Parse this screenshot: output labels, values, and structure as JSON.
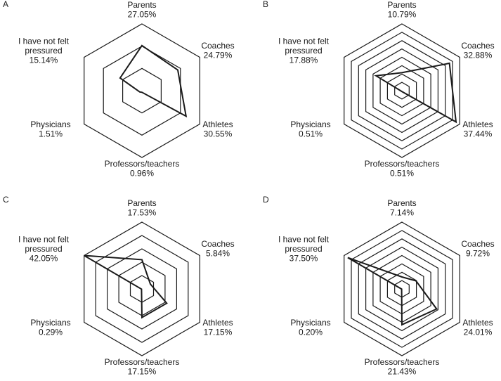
{
  "chart_data": [
    {
      "type": "radar",
      "panel": "A",
      "rings": 3,
      "axes": [
        "Parents",
        "Coaches",
        "Athletes",
        "Professors/teachers",
        "Physicians",
        "I have not felt pressured"
      ],
      "values": [
        27.05,
        24.79,
        30.55,
        0.96,
        1.51,
        15.14
      ],
      "value_labels": [
        "27.05%",
        "24.79%",
        "30.55%",
        "0.96%",
        "1.51%",
        "15.14%"
      ]
    },
    {
      "type": "radar",
      "panel": "B",
      "rings": 8,
      "axes": [
        "Parents",
        "Coaches",
        "Athletes",
        "Professors/teachers",
        "Physicians",
        "I have not felt pressured"
      ],
      "values": [
        10.79,
        32.88,
        37.44,
        0.51,
        0.51,
        17.88
      ],
      "value_labels": [
        "10.79%",
        "32.88%",
        "37.44%",
        "0.51%",
        "0.51%",
        "17.88%"
      ]
    },
    {
      "type": "radar",
      "panel": "C",
      "rings": 5,
      "axes": [
        "Parents",
        "Coaches",
        "Athletes",
        "Professors/teachers",
        "Physicians",
        "I have not felt pressured"
      ],
      "values": [
        17.53,
        5.84,
        17.15,
        17.15,
        0.29,
        42.05
      ],
      "value_labels": [
        "17.53%",
        "5.84%",
        "17.15%",
        "17.15%",
        "0.29%",
        "42.05%"
      ]
    },
    {
      "type": "radar",
      "panel": "D",
      "rings": 8,
      "axes": [
        "Parents",
        "Coaches",
        "Athletes",
        "Professors/teachers",
        "Physicians",
        "I have not felt pressured"
      ],
      "values": [
        7.14,
        9.72,
        24.01,
        21.43,
        0.2,
        37.5
      ],
      "value_labels": [
        "7.14%",
        "9.72%",
        "24.01%",
        "21.43%",
        "0.20%",
        "37.50%"
      ]
    }
  ]
}
